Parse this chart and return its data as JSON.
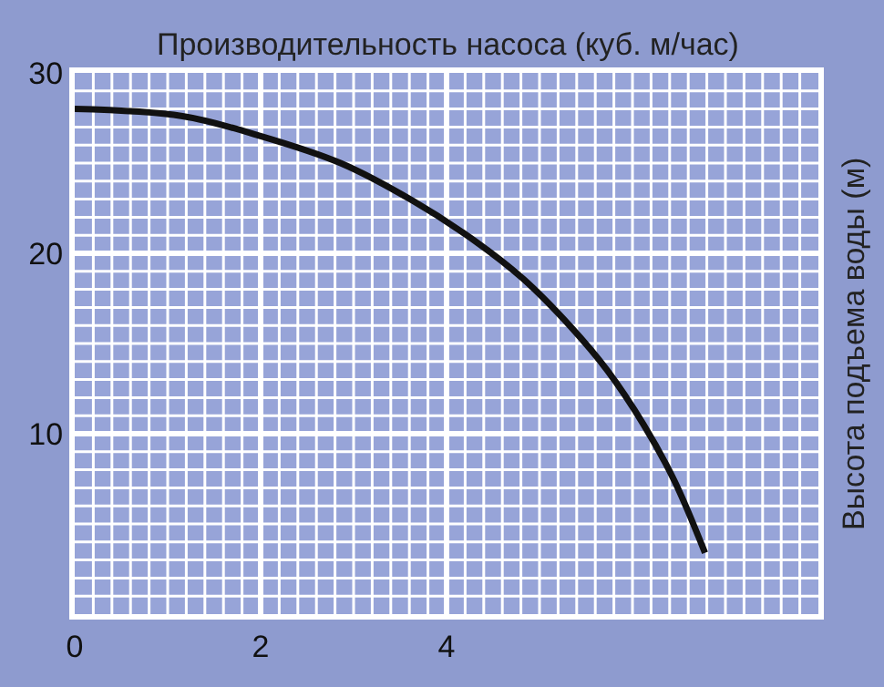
{
  "chart_data": {
    "type": "line",
    "xlabel": "Производительность насоса (куб. м/час)",
    "ylabel": "Высота подъема воды (м)",
    "x": [
      0,
      1.16,
      2.0,
      2.86,
      3.64,
      4.3,
      4.82,
      5.34,
      5.73,
      6.12,
      6.45,
      6.78
    ],
    "series": [
      {
        "color": "#111111",
        "values": [
          28.0,
          27.6,
          26.5,
          25.0,
          22.9,
          20.7,
          18.6,
          15.9,
          13.5,
          10.5,
          7.4,
          3.4
        ]
      }
    ],
    "xlim": [
      0,
      8
    ],
    "ylim": [
      0,
      30
    ],
    "xticks": [
      0,
      2,
      4
    ],
    "yticks": [
      10,
      20,
      30
    ],
    "grid": true,
    "marker": "none",
    "line_style": "solid"
  }
}
